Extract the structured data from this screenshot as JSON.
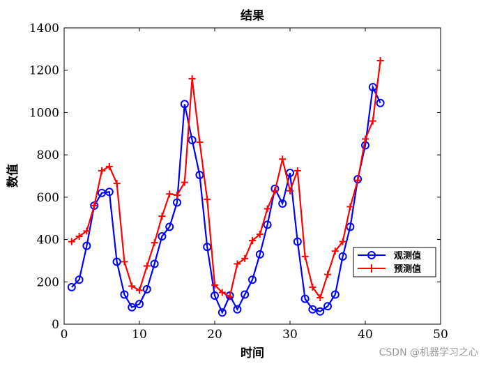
{
  "chart_data": {
    "type": "line",
    "title": "结果",
    "xlabel": "时间",
    "ylabel": "数值",
    "xlim": [
      0,
      50
    ],
    "ylim": [
      0,
      1400
    ],
    "xticks": [
      0,
      10,
      20,
      30,
      40,
      50
    ],
    "yticks": [
      0,
      200,
      400,
      600,
      800,
      1000,
      1200,
      1400
    ],
    "grid": false,
    "legend_position": "lower-right",
    "series": [
      {
        "name": "观测值",
        "color": "#0000ff",
        "marker": "circle",
        "x": [
          1,
          2,
          3,
          4,
          5,
          6,
          7,
          8,
          9,
          10,
          11,
          12,
          13,
          14,
          15,
          16,
          17,
          18,
          19,
          20,
          21,
          22,
          23,
          24,
          25,
          26,
          27,
          28,
          29,
          30,
          31,
          32,
          33,
          34,
          35,
          36,
          37,
          38,
          39,
          40,
          41,
          42
        ],
        "y": [
          175,
          210,
          370,
          560,
          620,
          625,
          295,
          140,
          80,
          95,
          165,
          285,
          415,
          460,
          575,
          1040,
          870,
          705,
          365,
          135,
          55,
          135,
          70,
          140,
          210,
          330,
          470,
          640,
          570,
          715,
          390,
          120,
          70,
          60,
          85,
          140,
          320,
          460,
          685,
          845,
          1120,
          1045
        ]
      },
      {
        "name": "预测值",
        "color": "#ff0000",
        "marker": "plus",
        "x": [
          1,
          2,
          3,
          4,
          5,
          6,
          7,
          8,
          9,
          10,
          11,
          12,
          13,
          14,
          15,
          16,
          17,
          18,
          19,
          20,
          21,
          22,
          23,
          24,
          25,
          26,
          27,
          28,
          29,
          30,
          31,
          32,
          33,
          34,
          35,
          36,
          37,
          38,
          39,
          40,
          41,
          42
        ],
        "y": [
          390,
          415,
          440,
          560,
          725,
          745,
          665,
          295,
          180,
          160,
          275,
          385,
          510,
          615,
          610,
          670,
          1160,
          860,
          590,
          185,
          150,
          130,
          285,
          310,
          395,
          425,
          545,
          630,
          780,
          630,
          725,
          320,
          175,
          125,
          235,
          345,
          390,
          555,
          680,
          875,
          960,
          1245
        ]
      }
    ]
  },
  "watermark": "CSDN @机器学习之心"
}
